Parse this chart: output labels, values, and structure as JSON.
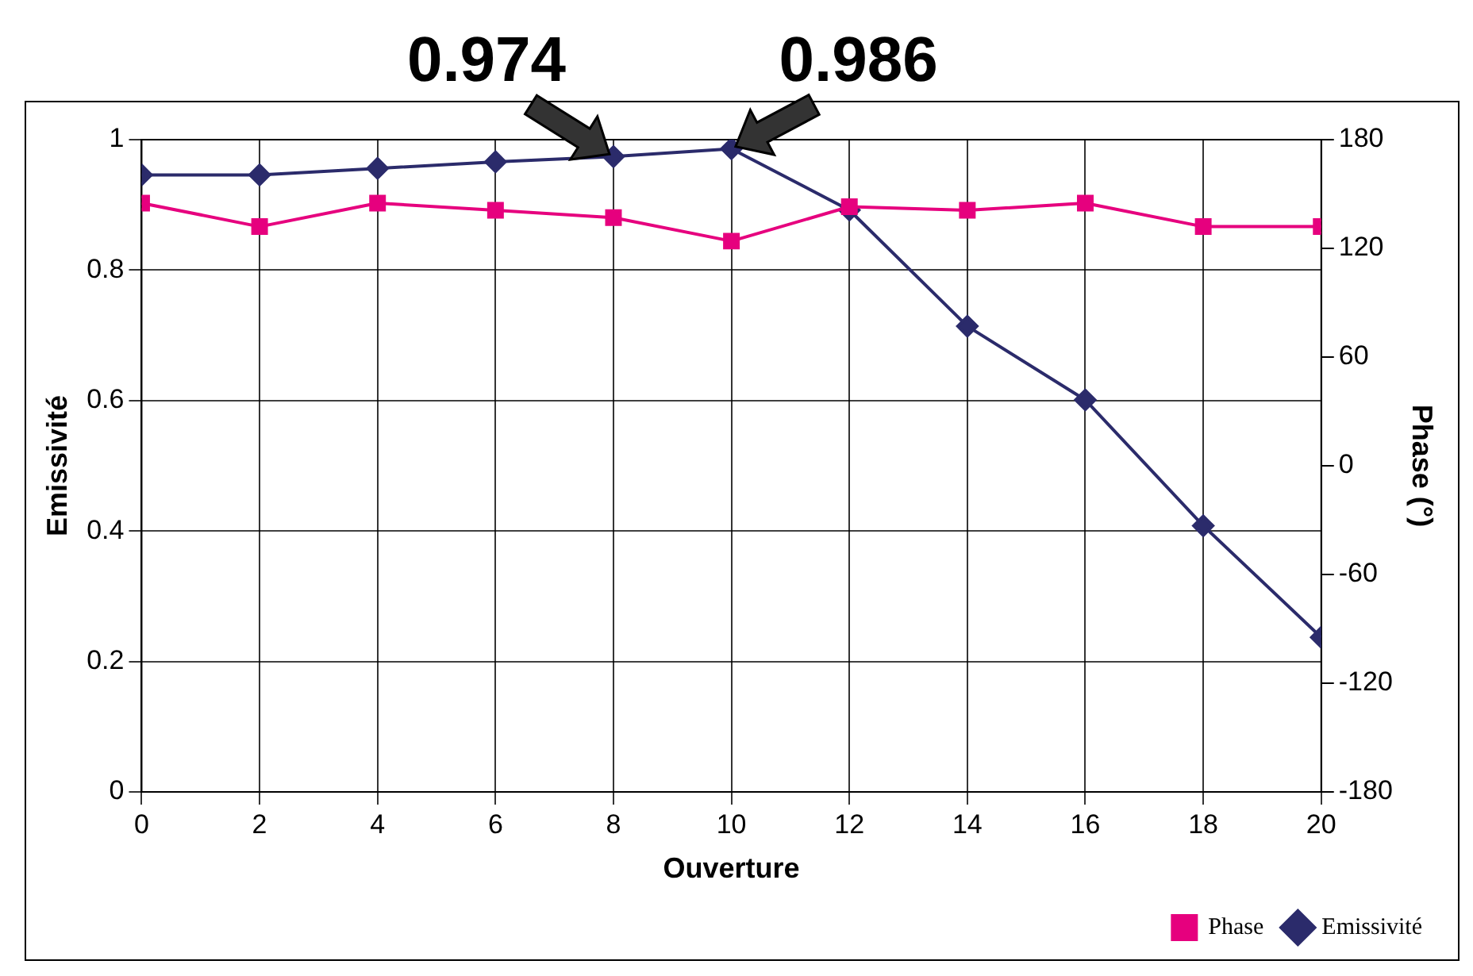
{
  "chart_data": {
    "type": "line",
    "xlabel": "Ouverture",
    "ylabel": "Emissivité",
    "y2label": "Phase (°)",
    "x": [
      0,
      2,
      4,
      6,
      8,
      10,
      12,
      14,
      16,
      18,
      20
    ],
    "series": [
      {
        "name": "Emissivité",
        "color": "#2b2b6b",
        "marker": "diamond",
        "values": [
          0.946,
          0.946,
          0.956,
          0.966,
          0.974,
          0.986,
          0.892,
          0.714,
          0.601,
          0.408,
          0.237
        ]
      },
      {
        "name": "Phase",
        "color": "#e6007e",
        "marker": "square",
        "axis": "y2",
        "values": [
          145,
          132,
          145,
          141,
          137,
          124,
          143,
          141,
          145,
          132,
          132
        ]
      }
    ],
    "xlim": [
      0,
      20
    ],
    "xticks": [
      0,
      2,
      4,
      6,
      8,
      10,
      12,
      14,
      16,
      18,
      20
    ],
    "ylim": [
      0,
      1
    ],
    "yticks": [
      0,
      0.2,
      0.4,
      0.6,
      0.8,
      1
    ],
    "y2lim": [
      -180,
      180
    ],
    "y2ticks": [
      -180,
      -120,
      -60,
      0,
      60,
      120,
      180
    ],
    "annotations": [
      {
        "text": "0.974",
        "x": 8,
        "y": 0.974
      },
      {
        "text": "0.986",
        "x": 10,
        "y": 0.986
      }
    ],
    "grid": true,
    "legend": "bottom right",
    "line_style": "solid"
  }
}
